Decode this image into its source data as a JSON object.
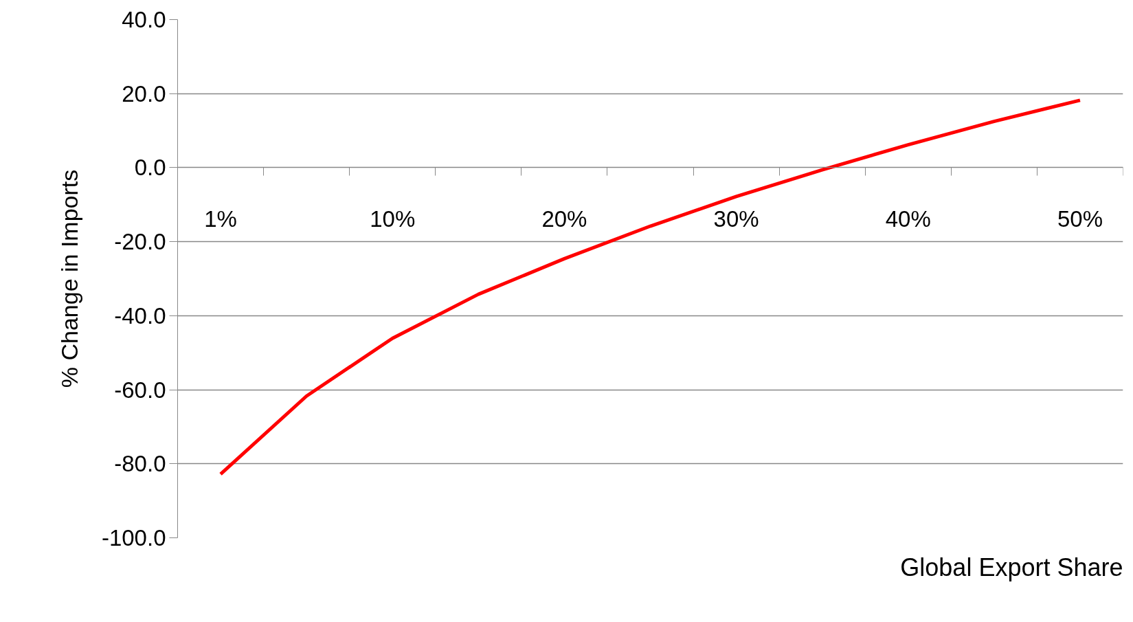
{
  "chart_data": {
    "type": "line",
    "xlabel": "Global Export Share",
    "ylabel": "% Change in Imports",
    "categories": [
      "1%",
      null,
      "10%",
      null,
      "20%",
      null,
      "30%",
      null,
      "40%",
      null,
      "50%"
    ],
    "series": [
      {
        "color": "#ff0000",
        "values": [
          -82.8,
          -61.7,
          -46.1,
          -34.2,
          -24.6,
          -15.8,
          -7.8,
          -0.6,
          6.2,
          12.5,
          18.2
        ]
      }
    ],
    "ylim": [
      -100,
      40
    ],
    "yticks": [
      {
        "value": -100,
        "label": "-100.0"
      },
      {
        "value": -80,
        "label": "-80.0"
      },
      {
        "value": -60,
        "label": "-60.0"
      },
      {
        "value": -40,
        "label": "-40.0"
      },
      {
        "value": -20,
        "label": "-20.0"
      },
      {
        "value": 0,
        "label": "0.0"
      },
      {
        "value": 20,
        "label": "20.0"
      },
      {
        "value": 40,
        "label": "40.0"
      }
    ],
    "grid": "y",
    "marker": "none",
    "line_style": "solid"
  }
}
